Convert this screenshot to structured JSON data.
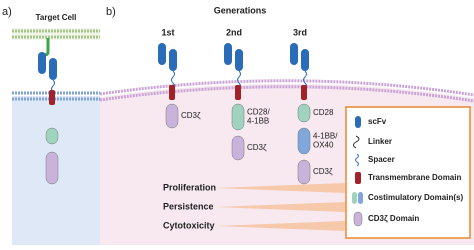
{
  "panel_a": {
    "label": "a)",
    "title": "Target Cell"
  },
  "panel_b": {
    "label": "b)",
    "title": "Generations",
    "generations": [
      {
        "name": "1st",
        "domains": [
          [
            "CD3ζ"
          ]
        ]
      },
      {
        "name": "2nd",
        "domains": [
          [
            "CD28/",
            "4-1BB"
          ],
          [
            "CD3ζ"
          ]
        ]
      },
      {
        "name": "3rd",
        "domains": [
          [
            "CD28"
          ],
          [
            "4-1BB/",
            "OX40"
          ],
          [
            "CD3ζ"
          ]
        ]
      }
    ],
    "outcomes": [
      "Proliferation",
      "Persistence",
      "Cytotoxicity"
    ]
  },
  "legend": [
    "scFv",
    "Linker",
    "Spacer",
    "Transmembrane Domain",
    "Costimulatory Domain(s)",
    "CD3ζ  Domain"
  ]
}
